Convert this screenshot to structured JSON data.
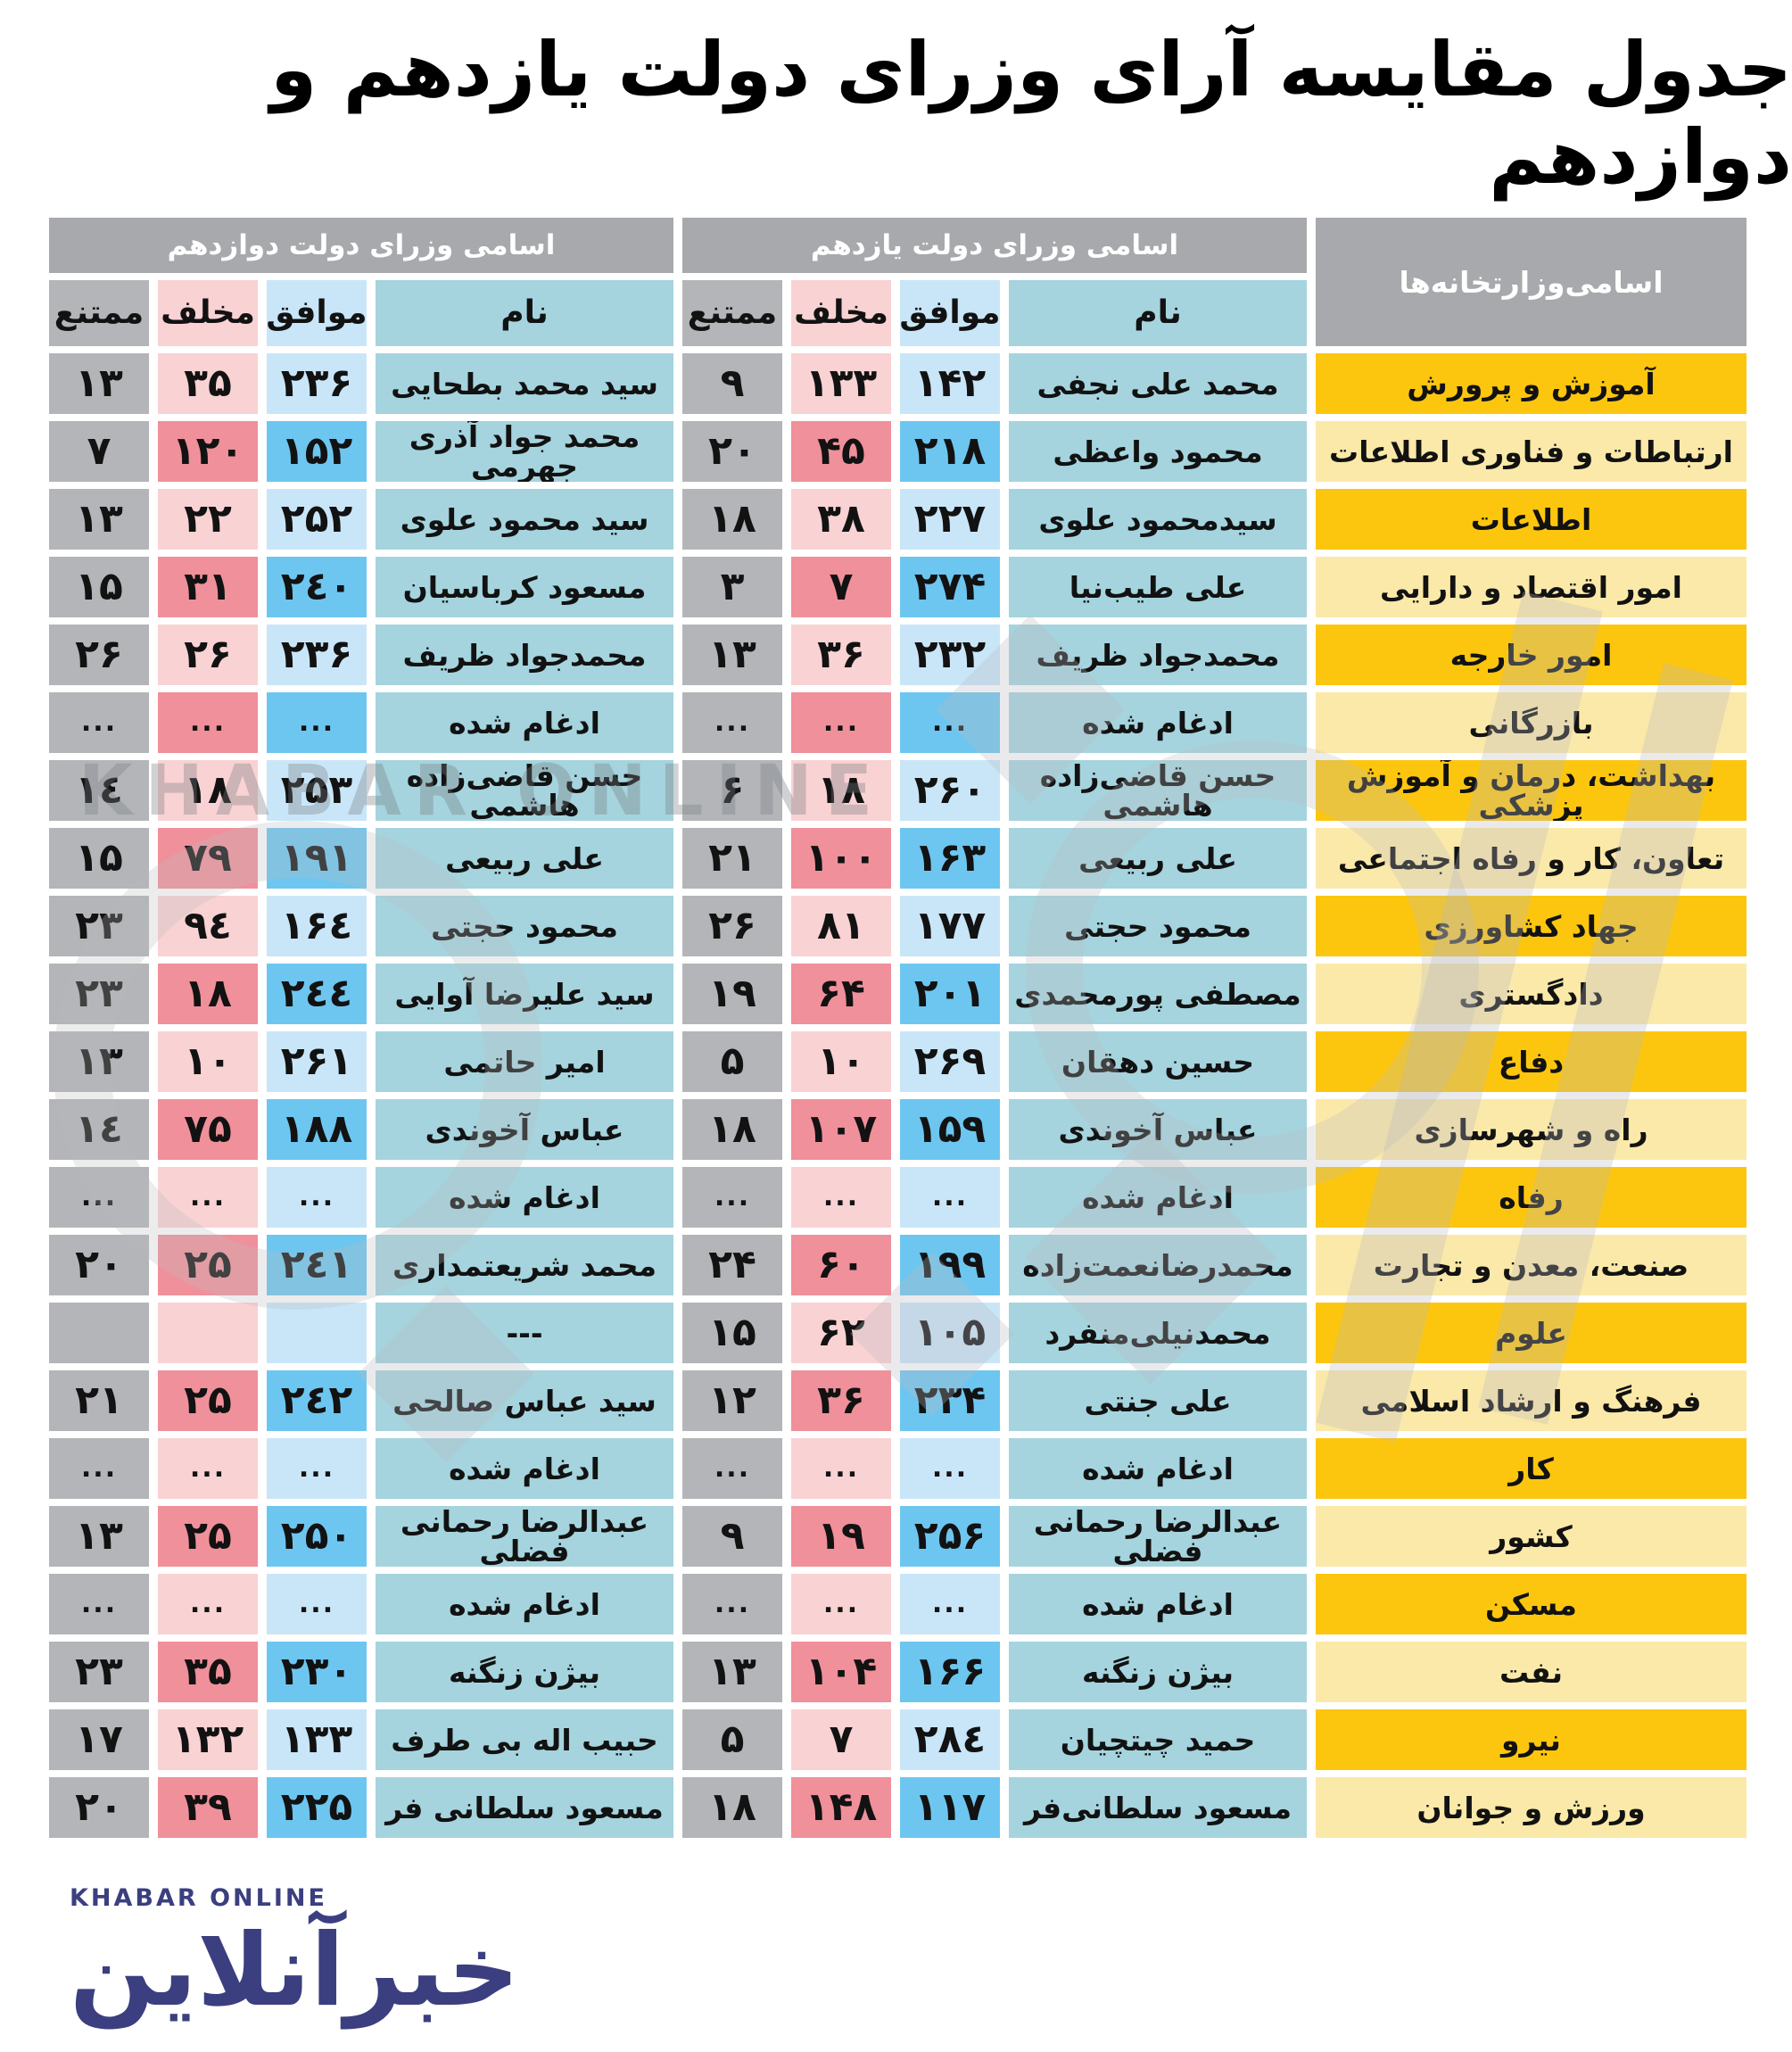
{
  "title": "جدول مقایسه آرای وزرای دولت یازدهم و دوازدهم",
  "chart_data": {
    "type": "table",
    "title": "جدول مقایسه آرای وزرای دولت یازدهم و دوازدهم",
    "direction": "rtl",
    "group_headers": {
      "ministries": "اسامی‌وزارتخانه‌ها",
      "gov11": "اسامی وزرای دولت یازدهم",
      "gov12": "اسامی وزرای دولت دوازدهم"
    },
    "columns": {
      "name": "نام",
      "agree": "موافق",
      "oppose": "مخلف",
      "abstain": "ممتنع"
    },
    "merged_label": "ادغام شده",
    "rows": [
      {
        "variant": "gold",
        "ministry": "آموزش و پرورش",
        "gov11": {
          "name": "محمد علی نجفی",
          "agree": "۱۴۲",
          "oppose": "۱۳۳",
          "abstain": "۹"
        },
        "gov12": {
          "name": "سید محمد بطحایی",
          "agree": "۲۳۶",
          "oppose": "۳۵",
          "abstain": "۱۳"
        }
      },
      {
        "variant": "light",
        "ministry": "ارتباطات و فناوری اطلاعات",
        "gov11": {
          "name": "محمود واعظی",
          "agree": "۲۱۸",
          "oppose": "۴۵",
          "abstain": "۲۰"
        },
        "gov12": {
          "name": "محمد جواد آذری جهرمی",
          "agree": "۱۵۲",
          "oppose": "۱۲۰",
          "abstain": "۷"
        }
      },
      {
        "variant": "gold",
        "ministry": "اطلاعات",
        "gov11": {
          "name": "سیدمحمود علوی",
          "agree": "۲۲۷",
          "oppose": "۳۸",
          "abstain": "۱۸"
        },
        "gov12": {
          "name": "سید محمود علوی",
          "agree": "۲۵۲",
          "oppose": "۲۲",
          "abstain": "۱۳"
        }
      },
      {
        "variant": "light",
        "ministry": "امور اقتصاد و دارایی",
        "gov11": {
          "name": "علی طیب‌نیا",
          "agree": "۲۷۴",
          "oppose": "۷",
          "abstain": "۳"
        },
        "gov12": {
          "name": "مسعود کرباسیان",
          "agree": "۲٤۰",
          "oppose": "۳۱",
          "abstain": "۱۵"
        }
      },
      {
        "variant": "gold",
        "ministry": "امور خارجه",
        "gov11": {
          "name": "محمدجواد ظریف",
          "agree": "۲۳۲",
          "oppose": "۳۶",
          "abstain": "۱۳"
        },
        "gov12": {
          "name": "محمدجواد ظریف",
          "agree": "۲۳۶",
          "oppose": "۲۶",
          "abstain": "۲۶"
        }
      },
      {
        "variant": "light",
        "ministry": "بازرگانی",
        "gov11": {
          "name": "ادغام شده",
          "agree": "...",
          "oppose": "...",
          "abstain": "..."
        },
        "gov12": {
          "name": "ادغام شده",
          "agree": "...",
          "oppose": "...",
          "abstain": "..."
        }
      },
      {
        "variant": "gold",
        "ministry": "بهداشت، درمان و آموزش پزشکی",
        "gov11": {
          "name": "حسن قاضی‌زاده هاشمی",
          "agree": "۲۶۰",
          "oppose": "۱۸",
          "abstain": "۶"
        },
        "gov12": {
          "name": "حسن قاضی‌زاده هاشمی",
          "agree": "۲۵۳",
          "oppose": "۱۸",
          "abstain": "۱٤"
        }
      },
      {
        "variant": "light",
        "ministry": "تعاون، کار و رفاه اجتماعی",
        "gov11": {
          "name": "علی ربیعی",
          "agree": "۱۶۳",
          "oppose": "۱۰۰",
          "abstain": "۲۱"
        },
        "gov12": {
          "name": "علی ربیعی",
          "agree": "۱۹۱",
          "oppose": "۷۹",
          "abstain": "۱۵"
        }
      },
      {
        "variant": "gold",
        "ministry": "جهاد کشاورزی",
        "gov11": {
          "name": "محمود حجتی",
          "agree": "۱۷۷",
          "oppose": "۸۱",
          "abstain": "۲۶"
        },
        "gov12": {
          "name": "محمود حجتی",
          "agree": "۱۶٤",
          "oppose": "۹٤",
          "abstain": "۲۳"
        }
      },
      {
        "variant": "light",
        "ministry": "دادگستری",
        "gov11": {
          "name": "مصطفی پورمحمدی",
          "agree": "۲۰۱",
          "oppose": "۶۴",
          "abstain": "۱۹"
        },
        "gov12": {
          "name": "سید علیرضا آوایی",
          "agree": "۲٤٤",
          "oppose": "۱۸",
          "abstain": "۲۳"
        }
      },
      {
        "variant": "gold",
        "ministry": "دفاع",
        "gov11": {
          "name": "حسین دهقان",
          "agree": "۲۶۹",
          "oppose": "۱۰",
          "abstain": "۵"
        },
        "gov12": {
          "name": "امیر حاتمی",
          "agree": "۲۶۱",
          "oppose": "۱۰",
          "abstain": "۱۳"
        }
      },
      {
        "variant": "light",
        "ministry": "راه و شهرسازی",
        "gov11": {
          "name": "عباس آخوندی",
          "agree": "۱۵۹",
          "oppose": "۱۰۷",
          "abstain": "۱۸"
        },
        "gov12": {
          "name": "عباس آخوندی",
          "agree": "۱۸۸",
          "oppose": "۷۵",
          "abstain": "۱٤"
        }
      },
      {
        "variant": "gold",
        "ministry": "رفاه",
        "gov11": {
          "name": "ادغام شده",
          "agree": "...",
          "oppose": "...",
          "abstain": "..."
        },
        "gov12": {
          "name": "ادغام شده",
          "agree": "...",
          "oppose": "...",
          "abstain": "..."
        }
      },
      {
        "variant": "light",
        "ministry": "صنعت، معدن و تجارت",
        "gov11": {
          "name": "محمدرضانعمت‌زاده",
          "agree": "۱۹۹",
          "oppose": "۶۰",
          "abstain": "۲۴"
        },
        "gov12": {
          "name": "محمد شریعتمداری",
          "agree": "۲٤۱",
          "oppose": "۲۵",
          "abstain": "۲۰"
        }
      },
      {
        "variant": "gold",
        "ministry": "علوم",
        "gov11": {
          "name": "محمدنیلی‌منفرد",
          "agree": "۱۰۵",
          "oppose": "۶۲",
          "abstain": "۱۵"
        },
        "gov12": {
          "name": "---",
          "agree": "",
          "oppose": "",
          "abstain": ""
        }
      },
      {
        "variant": "light",
        "ministry": "فرهنگ و ارشاد اسلامی",
        "gov11": {
          "name": "علی جنتی",
          "agree": "۲۳۴",
          "oppose": "۳۶",
          "abstain": "۱۲"
        },
        "gov12": {
          "name": "سید عباس صالحی",
          "agree": "۲٤۲",
          "oppose": "۲۵",
          "abstain": "۲۱"
        }
      },
      {
        "variant": "gold",
        "ministry": "کار",
        "gov11": {
          "name": "ادغام شده",
          "agree": "...",
          "oppose": "...",
          "abstain": "..."
        },
        "gov12": {
          "name": "ادغام شده",
          "agree": "...",
          "oppose": "...",
          "abstain": "..."
        }
      },
      {
        "variant": "light",
        "ministry": "کشور",
        "gov11": {
          "name": "عبدالرضا رحمانی فضلی",
          "agree": "۲۵۶",
          "oppose": "۱۹",
          "abstain": "۹"
        },
        "gov12": {
          "name": "عبدالرضا رحمانی فضلی",
          "agree": "۲۵۰",
          "oppose": "۲۵",
          "abstain": "۱۳"
        }
      },
      {
        "variant": "gold",
        "ministry": "مسکن",
        "gov11": {
          "name": "ادغام شده",
          "agree": "...",
          "oppose": "...",
          "abstain": "..."
        },
        "gov12": {
          "name": "ادغام شده",
          "agree": "...",
          "oppose": "...",
          "abstain": "..."
        }
      },
      {
        "variant": "light",
        "ministry": "نفت",
        "gov11": {
          "name": "بیژن زنگنه",
          "agree": "۱۶۶",
          "oppose": "۱۰۴",
          "abstain": "۱۳"
        },
        "gov12": {
          "name": "بیژن زنگنه",
          "agree": "۲۳۰",
          "oppose": "۳۵",
          "abstain": "۲۳"
        }
      },
      {
        "variant": "gold",
        "ministry": "نیرو",
        "gov11": {
          "name": "حمید چیتچیان",
          "agree": "۲۸٤",
          "oppose": "۷",
          "abstain": "۵"
        },
        "gov12": {
          "name": "حبیب اله بی طرف",
          "agree": "۱۳۳",
          "oppose": "۱۳۲",
          "abstain": "۱۷"
        }
      },
      {
        "variant": "light",
        "ministry": "ورزش و جوانان",
        "gov11": {
          "name": "مسعود سلطانی‌فر",
          "agree": "۱۱۷",
          "oppose": "۱۴۸",
          "abstain": "۱۸"
        },
        "gov12": {
          "name": "مسعود سلطانی فر",
          "agree": "۲۲۵",
          "oppose": "۳۹",
          "abstain": "۲۰"
        }
      }
    ]
  },
  "watermark": {
    "latin": "KHABAR ONLINE"
  },
  "footer_logo": {
    "latin": "KHABAR ONLINE",
    "farsi": "خبرآنلاین"
  },
  "colors": {
    "gold": "#fdc60e",
    "pale_yellow": "#fbe9a9",
    "blue_saturated": "#6dc6f0",
    "blue_pale": "#c9e6f8",
    "pink_saturated": "#f0909a",
    "pink_pale": "#f9d2d3",
    "teal_name": "#a5d4de",
    "gray_cell": "#b3b5b8",
    "gray_header": "#a7a9ac",
    "logo_navy": "#3b3f80"
  }
}
